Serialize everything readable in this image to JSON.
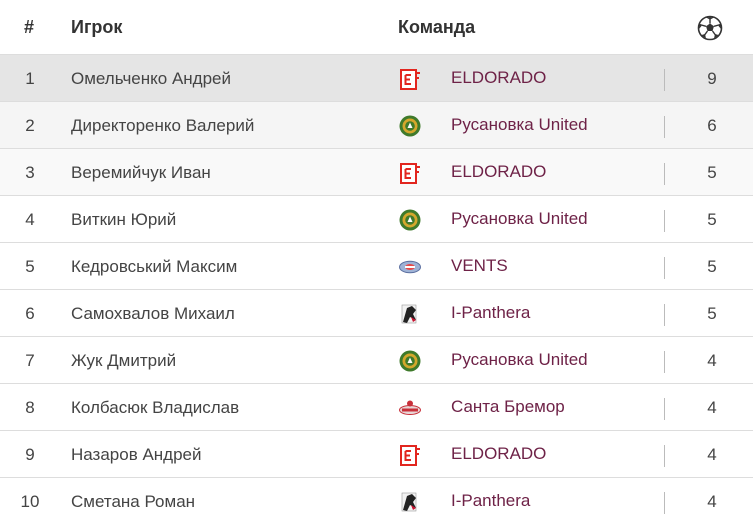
{
  "header": {
    "num_label": "#",
    "player_label": "Игрок",
    "team_label": "Команда",
    "goals_icon": "soccer-ball-icon"
  },
  "rows": [
    {
      "rank": "1",
      "player": "Омельченко Андрей",
      "team": "ELDORADO",
      "logo": "eldorado-logo-icon",
      "goals": "9"
    },
    {
      "rank": "2",
      "player": "Директоренко Валерий",
      "team": "Русановка United",
      "logo": "rusanovka-logo-icon",
      "goals": "6"
    },
    {
      "rank": "3",
      "player": "Веремийчук Иван",
      "team": "ELDORADO",
      "logo": "eldorado-logo-icon",
      "goals": "5"
    },
    {
      "rank": "4",
      "player": "Виткин Юрий",
      "team": "Русановка United",
      "logo": "rusanovka-logo-icon",
      "goals": "5"
    },
    {
      "rank": "5",
      "player": "Кедровський Максим",
      "team": "VENTS",
      "logo": "vents-logo-icon",
      "goals": "5"
    },
    {
      "rank": "6",
      "player": "Самохвалов Михаил",
      "team": "I-Panthera",
      "logo": "panthera-logo-icon",
      "goals": "5"
    },
    {
      "rank": "7",
      "player": "Жук Дмитрий",
      "team": "Русановка United",
      "logo": "rusanovka-logo-icon",
      "goals": "4"
    },
    {
      "rank": "8",
      "player": "Колбасюк Владислав",
      "team": "Санта Бремор",
      "logo": "santa-bremor-logo-icon",
      "goals": "4"
    },
    {
      "rank": "9",
      "player": "Назаров Андрей",
      "team": "ELDORADO",
      "logo": "eldorado-logo-icon",
      "goals": "4"
    },
    {
      "rank": "10",
      "player": "Сметана Роман",
      "team": "I-Panthera",
      "logo": "panthera-logo-icon",
      "goals": "4"
    }
  ],
  "colors": {
    "team_link": "#6e2247",
    "row_highlight": "#e5e5e5",
    "eldorado_red": "#e2261f",
    "rusanovka_green": "#3f7a2b",
    "rusanovka_gold": "#d4a72c"
  }
}
